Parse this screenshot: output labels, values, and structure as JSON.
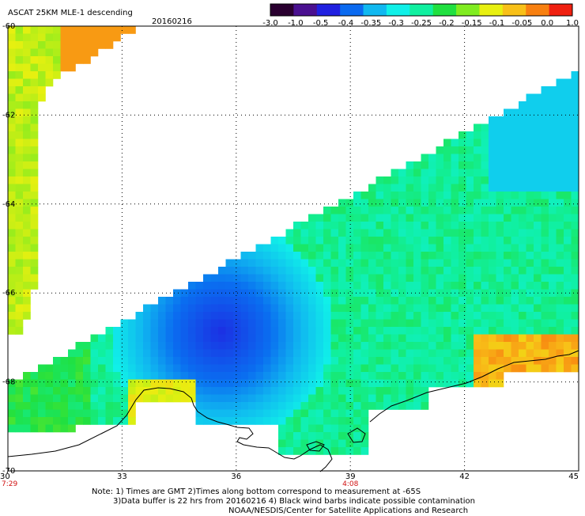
{
  "title": {
    "main": "ASCAT 25KM MLE-1 descending",
    "date": "20160216"
  },
  "chart_data": {
    "type": "heatmap",
    "xlim": [
      30,
      45
    ],
    "ylim": [
      -70,
      -60
    ],
    "x_ticks": [
      30,
      33,
      36,
      39,
      42,
      45
    ],
    "y_ticks": [
      -60,
      -62,
      -64,
      -66,
      -68,
      -70
    ],
    "grid": "dotted",
    "colorbar": {
      "placement": "top-right",
      "ticks": [
        "-3.0",
        "-1.0",
        "-0.5",
        "-0.4",
        "-0.35",
        "-0.3",
        "-0.25",
        "-0.2",
        "-0.15",
        "-0.1",
        "-0.05",
        "0.0",
        "1.0"
      ],
      "colors": [
        "#2a0030",
        "#4a1090",
        "#2020e0",
        "#0a6af0",
        "#10b8f0",
        "#10f0e8",
        "#10f0a0",
        "#20e040",
        "#80ec20",
        "#e8f010",
        "#f8c018",
        "#f88010",
        "#f02010"
      ]
    },
    "swath_times": [
      {
        "lon": 30,
        "label": "7:29"
      },
      {
        "lon": 39,
        "label": "4:08"
      }
    ],
    "value_regions": [
      {
        "area": "northwest corner near 30-32E, 60-61S",
        "value": -0.05
      },
      {
        "area": "western strip 30-32E, 61-66S",
        "value": -0.1
      },
      {
        "area": "central Weddell-side swath 34-37E, 66-68.5S",
        "value": -0.38
      },
      {
        "area": "main swath interior 37-45E, 63-68S",
        "value": -0.22
      },
      {
        "area": "coastal band near 43-45E, 68S",
        "value": 0.0
      }
    ]
  },
  "notes": {
    "line1": "Note: 1) Times are GMT 2)Times along bottom correspond to measurement at -65S",
    "line2": "3)Data buffer is 22 hrs from 20160216 4) Black wind barbs indicate possible contamination",
    "line3": "NOAA/NESDIS/Center for Satellite Applications and Research"
  }
}
